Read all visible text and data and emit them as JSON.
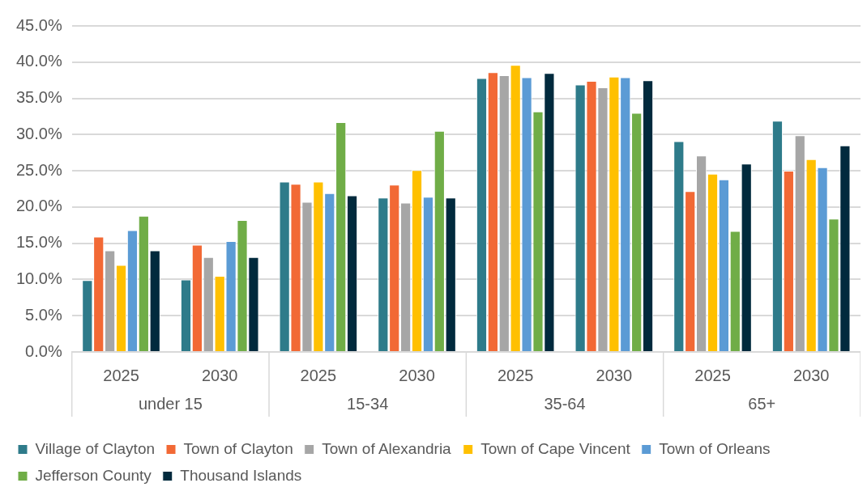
{
  "chart_data": {
    "type": "bar",
    "categories": [
      "2025",
      "2030",
      "2025",
      "2030",
      "2025",
      "2030",
      "2025",
      "2030"
    ],
    "annotations": [
      "under 15",
      "15-34",
      "35-64",
      "65+"
    ],
    "series": [
      {
        "name": "Village of Clayton",
        "color": "#2e7b8a",
        "values": [
          9.9,
          10.0,
          23.5,
          21.3,
          37.8,
          36.9,
          29.1,
          31.9
        ]
      },
      {
        "name": "Town of Clayton",
        "color": "#f26935",
        "values": [
          15.9,
          14.8,
          23.2,
          23.1,
          38.6,
          37.4,
          22.2,
          25.0
        ]
      },
      {
        "name": "Town of Alexandria",
        "color": "#a6a6a6",
        "values": [
          14.0,
          13.1,
          20.7,
          20.6,
          38.2,
          36.5,
          27.1,
          29.9
        ]
      },
      {
        "name": "Town of Cape Vincent",
        "color": "#ffc000",
        "values": [
          12.0,
          10.5,
          23.5,
          25.1,
          39.6,
          38.0,
          24.6,
          26.6
        ]
      },
      {
        "name": "Town of Orleans",
        "color": "#5b9bd5",
        "values": [
          16.8,
          15.3,
          21.9,
          21.4,
          37.9,
          37.9,
          23.8,
          25.5
        ]
      },
      {
        "name": "Jefferson County",
        "color": "#70ad47",
        "values": [
          18.8,
          18.2,
          31.7,
          30.5,
          33.2,
          33.0,
          16.7,
          18.4
        ]
      },
      {
        "name": "Thousand Islands",
        "color": "#012a3d",
        "values": [
          14.0,
          13.1,
          21.6,
          21.3,
          38.5,
          37.5,
          26.0,
          28.5
        ]
      }
    ],
    "ylim": [
      0,
      45
    ],
    "yticks": [
      {
        "value": 0,
        "label": "0.0%"
      },
      {
        "value": 5,
        "label": "5.0%"
      },
      {
        "value": 10,
        "label": "10.0%"
      },
      {
        "value": 15,
        "label": "15.0%"
      },
      {
        "value": 20,
        "label": "20.0%"
      },
      {
        "value": 25,
        "label": "25.0%"
      },
      {
        "value": 30,
        "label": "30.0%"
      },
      {
        "value": 35,
        "label": "35.0%"
      },
      {
        "value": 40,
        "label": "40.0%"
      },
      {
        "value": 45,
        "label": "45.0%"
      }
    ],
    "grid": "y",
    "legend": "bottom"
  }
}
